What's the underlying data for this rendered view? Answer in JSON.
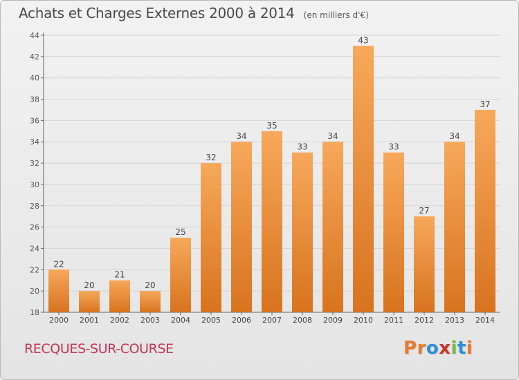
{
  "header": {
    "title": "Achats et Charges Externes 2000 à 2014",
    "unit": "(en milliers d'€)"
  },
  "footer": {
    "commune": "RECQUES-SUR-COURSE",
    "logo_text": "Proxiti",
    "logo_colors": [
      "#e8792c",
      "#e8792c",
      "#2a8fd6",
      "#c9352b",
      "#7bb837",
      "#2a8fd6",
      "#e8792c"
    ]
  },
  "chart_data": {
    "type": "bar",
    "categories": [
      "2000",
      "2001",
      "2002",
      "2003",
      "2004",
      "2005",
      "2006",
      "2007",
      "2008",
      "2009",
      "2010",
      "2011",
      "2012",
      "2013",
      "2014"
    ],
    "values": [
      22,
      20,
      21,
      20,
      25,
      32,
      34,
      35,
      33,
      34,
      43,
      33,
      27,
      34,
      37
    ],
    "ylim": [
      18,
      44
    ],
    "yticks": [
      18,
      20,
      22,
      24,
      26,
      28,
      30,
      32,
      34,
      36,
      38,
      40,
      42,
      44
    ],
    "grid": true,
    "bar_color_light": "#f7a85a",
    "bar_color_dark": "#d8731e"
  }
}
